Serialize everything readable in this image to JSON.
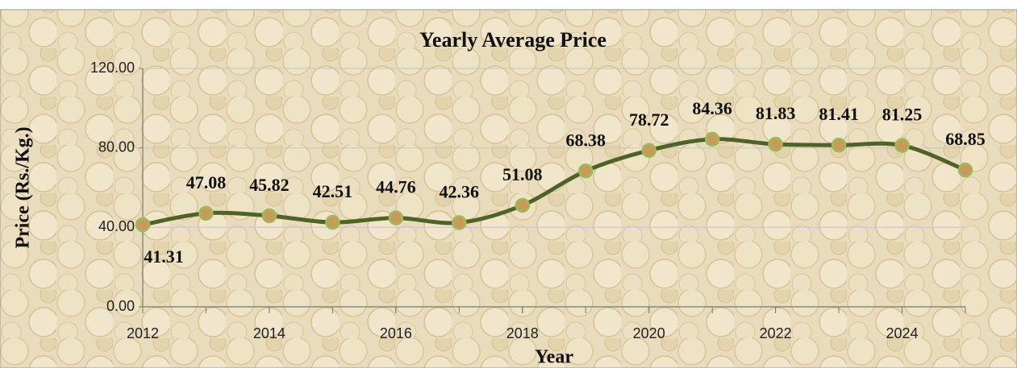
{
  "chart_data": {
    "type": "line",
    "title": "Yearly Average Price",
    "x_label": "Year",
    "y_label": "Price (Rs./Kg.)",
    "x": [
      2012,
      2013,
      2014,
      2015,
      2016,
      2017,
      2018,
      2019,
      2020,
      2021,
      2022,
      2023,
      2024,
      2025
    ],
    "series": [
      {
        "name": "Yearly Average Price",
        "color": "#4f6228",
        "values": [
          41.31,
          47.08,
          45.82,
          42.51,
          44.76,
          42.36,
          51.08,
          68.38,
          78.72,
          84.36,
          81.83,
          81.41,
          81.25,
          68.85
        ]
      }
    ],
    "xlim": [
      2012,
      2025
    ],
    "xticks": [
      2012,
      2014,
      2016,
      2018,
      2020,
      2022,
      2024
    ],
    "ylim": [
      0,
      120
    ],
    "yticks": [
      {
        "value": 0,
        "label": "0.00"
      },
      {
        "value": 40,
        "label": "40.00"
      },
      {
        "value": 80,
        "label": "80.00"
      },
      {
        "value": 120,
        "label": "120.00"
      }
    ],
    "grid": true
  }
}
